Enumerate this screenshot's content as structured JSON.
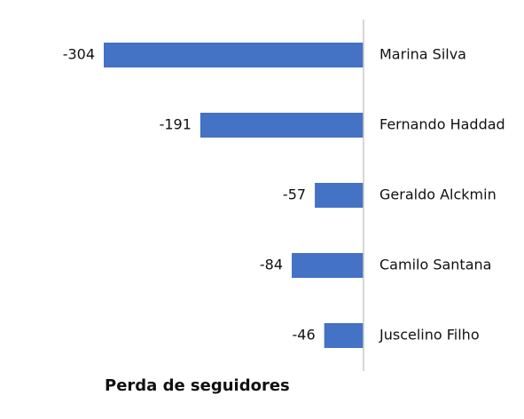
{
  "chart_data": {
    "type": "bar",
    "orientation": "horizontal",
    "categories": [
      "Marina Silva",
      "Fernando Haddad",
      "Geraldo Alckmin",
      "Camilo Santana",
      "Juscelino Filho"
    ],
    "values": [
      -304,
      -191,
      -57,
      -84,
      -46
    ],
    "color": "#4472c4",
    "xlabel": "Perda de seguidores"
  }
}
